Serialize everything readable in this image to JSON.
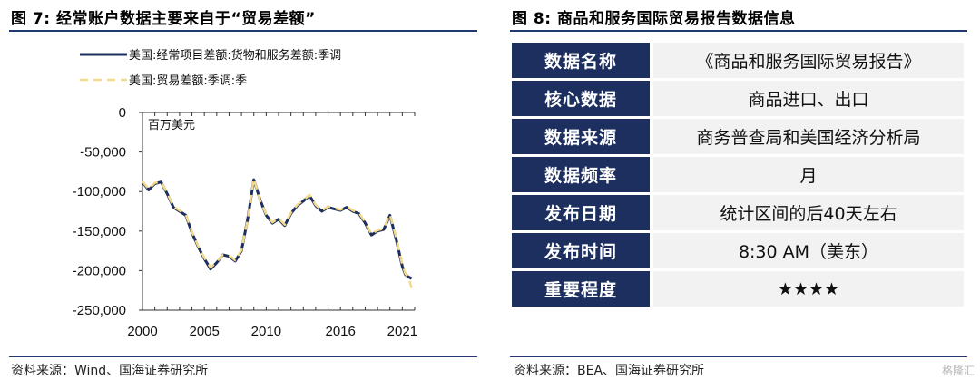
{
  "left": {
    "title": "图 7:  经常账户数据主要来自于“贸易差额”",
    "source": "资料来源：Wind、国海证券研究所"
  },
  "right": {
    "title": "图 8:  商品和服务国际贸易报告数据信息",
    "source": "资料来源：BEA、国海证券研究所",
    "rows": [
      {
        "key": "数据名称",
        "value": "《商品和服务国际贸易报告》"
      },
      {
        "key": "核心数据",
        "value": "商品进口、出口"
      },
      {
        "key": "数据来源",
        "value": "商务普查局和美国经济分析局"
      },
      {
        "key": "数据频率",
        "value": "月"
      },
      {
        "key": "发布日期",
        "value": "统计区间的后40天左右"
      },
      {
        "key": "发布时间",
        "value": "8:30 AM（美东）"
      },
      {
        "key": "重要程度",
        "value": "★★★★"
      }
    ]
  },
  "watermark": "格隆汇",
  "chart_data": {
    "type": "line",
    "title": "",
    "unit_label": "百万美元",
    "xlabel": "",
    "ylabel": "",
    "xlim": [
      2000,
      2022
    ],
    "ylim": [
      -250000,
      0
    ],
    "x_ticks": [
      2000,
      2005,
      2010,
      2016,
      2021
    ],
    "y_ticks": [
      0,
      -50000,
      -100000,
      -150000,
      -200000,
      -250000
    ],
    "y_tick_labels": [
      "0",
      "-50,000",
      "-100,000",
      "-150,000",
      "-200,000",
      "-250,000"
    ],
    "legend_position": "top-left",
    "series": [
      {
        "name": "美国:经常项目差额:货物和服务差额:季调",
        "color": "#1d2f5e",
        "style": "solid",
        "x": [
          2000,
          2000.5,
          2001,
          2001.5,
          2002,
          2002.5,
          2003,
          2003.5,
          2004,
          2004.5,
          2005,
          2005.5,
          2006,
          2006.5,
          2007,
          2007.5,
          2008,
          2008.5,
          2009,
          2009.5,
          2010,
          2010.5,
          2011,
          2011.5,
          2012,
          2012.5,
          2013,
          2013.5,
          2014,
          2014.5,
          2015,
          2015.5,
          2016,
          2016.5,
          2017,
          2017.5,
          2018,
          2018.5,
          2019,
          2019.5,
          2020,
          2020.5,
          2021,
          2021.25,
          2021.5,
          2021.75
        ],
        "values": [
          -88000,
          -98000,
          -90000,
          -88000,
          -103000,
          -120000,
          -125000,
          -130000,
          -152000,
          -170000,
          -185000,
          -198000,
          -190000,
          -180000,
          -182000,
          -188000,
          -175000,
          -135000,
          -85000,
          -110000,
          -130000,
          -140000,
          -135000,
          -143000,
          -128000,
          -118000,
          -112000,
          -105000,
          -118000,
          -125000,
          -120000,
          -122000,
          -124000,
          -120000,
          -125000,
          -128000,
          -140000,
          -155000,
          -150000,
          -148000,
          -130000,
          -160000,
          -195000,
          -205000,
          -208000,
          -210000
        ]
      },
      {
        "name": "美国:贸易差额:季调:季",
        "color": "#f3d98a",
        "style": "dashed",
        "x": [
          2000,
          2000.5,
          2001,
          2001.5,
          2002,
          2002.5,
          2003,
          2003.5,
          2004,
          2004.5,
          2005,
          2005.5,
          2006,
          2006.5,
          2007,
          2007.5,
          2008,
          2008.5,
          2009,
          2009.5,
          2010,
          2010.5,
          2011,
          2011.5,
          2012,
          2012.5,
          2013,
          2013.5,
          2014,
          2014.5,
          2015,
          2015.5,
          2016,
          2016.5,
          2017,
          2017.5,
          2018,
          2018.5,
          2019,
          2019.5,
          2020,
          2020.5,
          2021,
          2021.25,
          2021.5,
          2021.75
        ],
        "values": [
          -87000,
          -97000,
          -89000,
          -88000,
          -102000,
          -119000,
          -124000,
          -129000,
          -151000,
          -169000,
          -184000,
          -196000,
          -189000,
          -180000,
          -181000,
          -187000,
          -174000,
          -136000,
          -84000,
          -111000,
          -129000,
          -139000,
          -134000,
          -142000,
          -127000,
          -117000,
          -111000,
          -104000,
          -117000,
          -124000,
          -119000,
          -121000,
          -123000,
          -119000,
          -124000,
          -127000,
          -139000,
          -154000,
          -149000,
          -147000,
          -129000,
          -158000,
          -193000,
          -204000,
          -209000,
          -222000
        ]
      }
    ]
  }
}
